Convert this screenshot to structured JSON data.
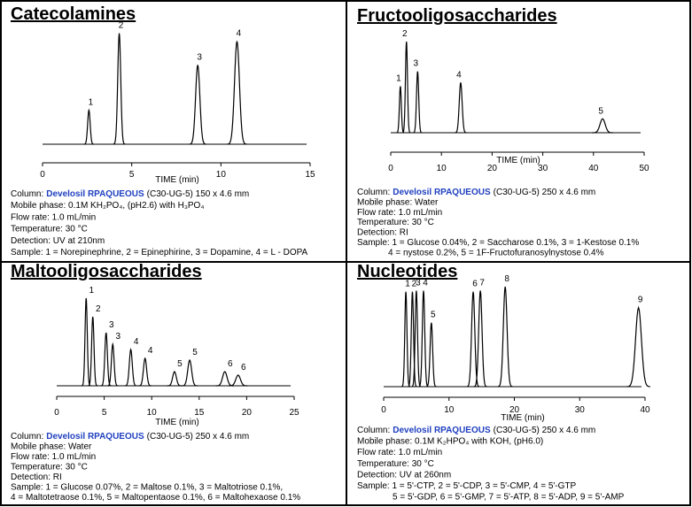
{
  "chart_data": [
    {
      "type": "chromatogram",
      "title": "Catecolamines",
      "xlabel": "TIME (min)",
      "xlim": [
        0,
        15
      ],
      "xticks": [
        0,
        5,
        10,
        15
      ],
      "peaks": [
        {
          "label": "1",
          "x": 2.6,
          "height": 30
        },
        {
          "label": "2",
          "x": 4.3,
          "height": 98
        },
        {
          "label": "3",
          "x": 8.7,
          "height": 70
        },
        {
          "label": "4",
          "x": 10.9,
          "height": 91
        }
      ],
      "column": {
        "label": "Column:",
        "product": "Develosil RPAQUEOUS",
        "spec": "(C30-UG-5) 150 x 4.6 mm"
      },
      "conditions": [
        "Mobile phase: 0.1M KH₂PO₄, (pH2.6) with H₃PO₄",
        "Flow rate: 1.0 mL/min",
        "Temperature: 30 °C",
        "Detection: UV at 210nm"
      ],
      "sample": [
        "Sample: 1 = Norepinephrine, 2 = Epinephirine, 3 = Dopamine, 4 = L - DOPA"
      ]
    },
    {
      "type": "chromatogram",
      "title": "Fructooligosaccharides",
      "xlabel": "TIME (min)",
      "xlim": [
        0,
        50
      ],
      "xticks": [
        0,
        10,
        20,
        30,
        40,
        50
      ],
      "peaks": [
        {
          "label": "1",
          "x": 1.9,
          "height": 50
        },
        {
          "label": "2",
          "x": 3.1,
          "height": 98
        },
        {
          "label": "3",
          "x": 5.3,
          "height": 66
        },
        {
          "label": "4",
          "x": 13.8,
          "height": 54
        },
        {
          "label": "5",
          "x": 41.8,
          "height": 15
        }
      ],
      "column": {
        "label": "Column:",
        "product": "Develosil RPAQUEOUS",
        "spec": "(C30-UG-5) 250 x 4.6 mm"
      },
      "conditions": [
        "Mobile phase: Water",
        "Flow rate: 1.0 mL/min",
        "Temperature: 30 °C",
        "Detection: RI"
      ],
      "sample": [
        "Sample: 1 = Glucose 0.04%, 2 = Saccharose 0.1%, 3 = 1-Kestose 0.1%",
        "4 =  nystose 0.2%, 5 = 1F-Fructofuranosylnystose 0.4%"
      ]
    },
    {
      "type": "chromatogram",
      "title": "Maltooligosaccharides",
      "xlabel": "TIME (min)",
      "xlim": [
        0,
        25
      ],
      "xticks": [
        0,
        5,
        10,
        15,
        20,
        25
      ],
      "peaks": [
        {
          "label": "1",
          "x": 3.1,
          "height": 99
        },
        {
          "label": "2",
          "x": 3.8,
          "height": 78
        },
        {
          "label": "3",
          "x": 5.2,
          "height": 60
        },
        {
          "label": "3",
          "x": 5.9,
          "height": 47
        },
        {
          "label": "4",
          "x": 7.8,
          "height": 41
        },
        {
          "label": "4",
          "x": 9.3,
          "height": 31
        },
        {
          "label": "5",
          "x": 12.4,
          "height": 16
        },
        {
          "label": "5",
          "x": 14.0,
          "height": 29
        },
        {
          "label": "6",
          "x": 17.7,
          "height": 16
        },
        {
          "label": "6",
          "x": 19.1,
          "height": 12
        }
      ],
      "column": {
        "label": "Column:",
        "product": "Develosil RPAQUEOUS",
        "spec": "(C30-UG-5) 250 x 4.6 mm"
      },
      "conditions": [
        "Mobile phase: Water",
        "Flow rate: 1.0 mL/min",
        "Temperature: 30 °C",
        "Detection: RI"
      ],
      "sample": [
        "Sample: 1 = Glucose 0.07%, 2 = Maltose 0.1%, 3 = Maltotriose 0.1%,",
        "4 = Maltotetraose 0.1%, 5 = Maltopentaose 0.1%, 6 = Maltohexaose 0.1%"
      ]
    },
    {
      "type": "chromatogram",
      "title": "Nucleotides",
      "xlabel": "TIME (min)",
      "xlim": [
        0,
        40
      ],
      "xticks": [
        0,
        10,
        20,
        30,
        40
      ],
      "peaks": [
        {
          "label": "1",
          "x": 3.4,
          "height": 95
        },
        {
          "label": "2",
          "x": 4.4,
          "height": 95
        },
        {
          "label": "3",
          "x": 5.0,
          "height": 96
        },
        {
          "label": "4",
          "x": 6.1,
          "height": 96
        },
        {
          "label": "5",
          "x": 7.3,
          "height": 64
        },
        {
          "label": "6",
          "x": 13.7,
          "height": 95
        },
        {
          "label": "7",
          "x": 14.8,
          "height": 96
        },
        {
          "label": "8",
          "x": 18.6,
          "height": 100
        },
        {
          "label": "9",
          "x": 39.0,
          "height": 79
        }
      ],
      "column": {
        "label": "Column:",
        "product": "Develosil RPAQUEOUS",
        "spec": "(C30-UG-5) 250 x 4.6 mm"
      },
      "conditions": [
        "Mobile phase: 0.1M K₂HPO₄ with KOH, (pH6.0)",
        "Flow rate: 1.0 mL/min",
        "Temperature: 30 °C",
        "Detection: UV at 260nm"
      ],
      "sample": [
        "Sample: 1 = 5'-CTP, 2 = 5'-CDP, 3 = 5'-CMP, 4 = 5'-GTP",
        "5 = 5'-GDP, 6 = 5'-GMP, 7 = 5'-ATP, 8 = 5'-ADP, 9 = 5'-AMP"
      ]
    }
  ]
}
